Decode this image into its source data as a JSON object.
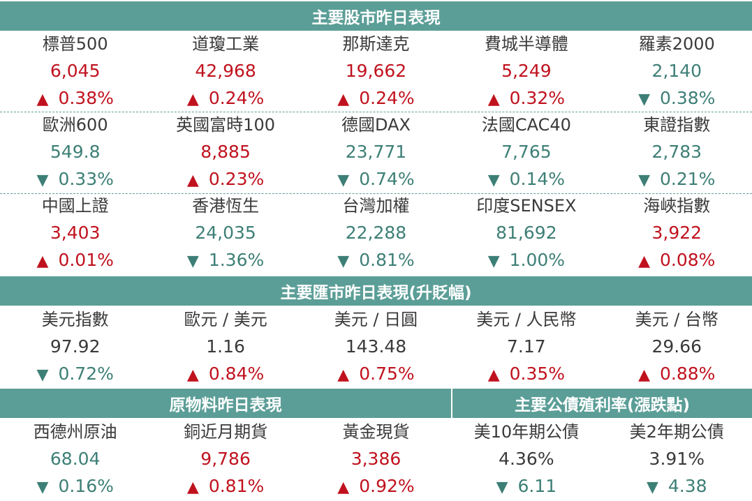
{
  "stocks": {
    "title": "主要股市昨日表現",
    "rows": [
      [
        {
          "name": "標普500",
          "value": "6,045",
          "dir": "up",
          "change": "0.38%"
        },
        {
          "name": "道瓊工業",
          "value": "42,968",
          "dir": "up",
          "change": "0.24%"
        },
        {
          "name": "那斯達克",
          "value": "19,662",
          "dir": "up",
          "change": "0.24%"
        },
        {
          "name": "費城半導體",
          "value": "5,249",
          "dir": "up",
          "change": "0.32%"
        },
        {
          "name": "羅素2000",
          "value": "2,140",
          "dir": "down",
          "change": "0.38%"
        }
      ],
      [
        {
          "name": "歐洲600",
          "value": "549.8",
          "dir": "down",
          "change": "0.33%"
        },
        {
          "name": "英國富時100",
          "value": "8,885",
          "dir": "up",
          "change": "0.23%"
        },
        {
          "name": "德國DAX",
          "value": "23,771",
          "dir": "down",
          "change": "0.74%"
        },
        {
          "name": "法國CAC40",
          "value": "7,765",
          "dir": "down",
          "change": "0.14%"
        },
        {
          "name": "東證指數",
          "value": "2,783",
          "dir": "down",
          "change": "0.21%"
        }
      ],
      [
        {
          "name": "中國上證",
          "value": "3,403",
          "dir": "up",
          "change": "0.01%"
        },
        {
          "name": "香港恆生",
          "value": "24,035",
          "dir": "down",
          "change": "1.36%"
        },
        {
          "name": "台灣加權",
          "value": "22,288",
          "dir": "down",
          "change": "0.81%"
        },
        {
          "name": "印度SENSEX",
          "value": "81,692",
          "dir": "down",
          "change": "1.00%"
        },
        {
          "name": "海峽指數",
          "value": "3,922",
          "dir": "up",
          "change": "0.08%"
        }
      ]
    ]
  },
  "fx": {
    "title": "主要匯市昨日表現(升貶幅)",
    "items": [
      {
        "name": "美元指數",
        "value": "97.92",
        "dir": "down",
        "change": "0.72%"
      },
      {
        "name": "歐元 / 美元",
        "value": "1.16",
        "dir": "up",
        "change": "0.84%"
      },
      {
        "name": "美元 / 日圓",
        "value": "143.48",
        "dir": "up",
        "change": "0.75%"
      },
      {
        "name": "美元 / 人民幣",
        "value": "7.17",
        "dir": "up",
        "change": "0.35%"
      },
      {
        "name": "美元 / 台幣",
        "value": "29.66",
        "dir": "up",
        "change": "0.88%"
      }
    ]
  },
  "commodities": {
    "title": "原物料昨日表現",
    "items": [
      {
        "name": "西德州原油",
        "value": "68.04",
        "dir": "down",
        "change": "0.16%"
      },
      {
        "name": "銅近月期貨",
        "value": "9,786",
        "dir": "up",
        "change": "0.81%"
      },
      {
        "name": "黃金現貨",
        "value": "3,386",
        "dir": "up",
        "change": "0.92%"
      }
    ]
  },
  "bonds": {
    "title": "主要公債殖利率(漲跌點)",
    "items": [
      {
        "name": "美10年期公債",
        "value": "4.36%",
        "dir": "down",
        "change": "6.11"
      },
      {
        "name": "美2年期公債",
        "value": "3.91%",
        "dir": "down",
        "change": "4.38"
      }
    ]
  },
  "symbols": {
    "up": "▲",
    "down": "▼"
  },
  "colors": {
    "header": "#5b9e97",
    "up": "#c0121e",
    "down": "#3d7f76"
  }
}
